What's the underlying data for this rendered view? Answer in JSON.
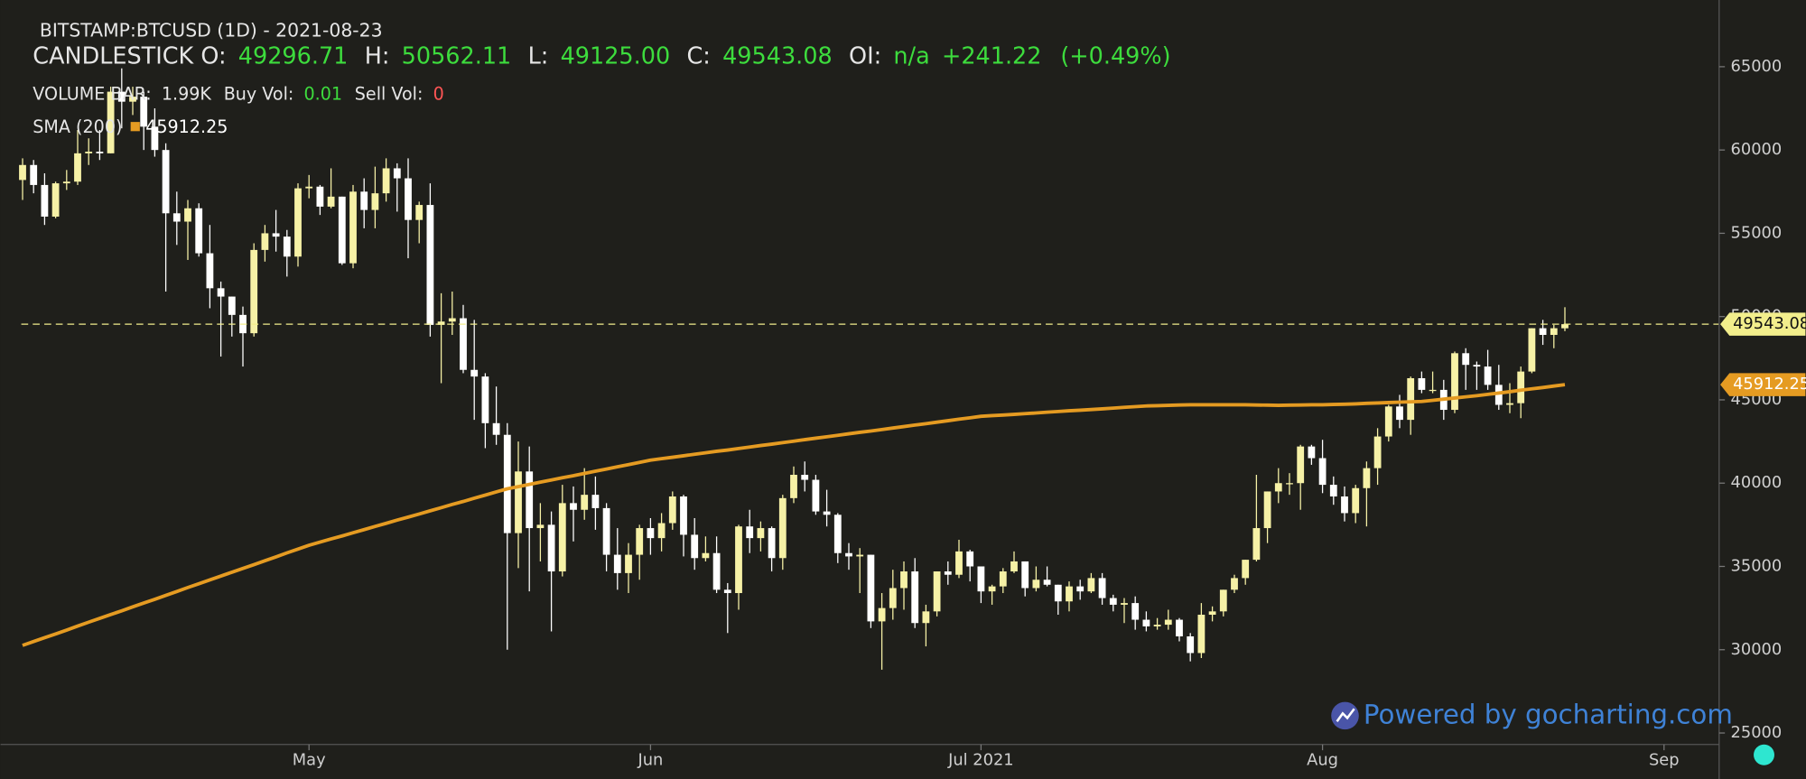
{
  "header": {
    "symbol": "BITSTAMP:BTCUSD (1D) - 2021-08-23",
    "ohlc": [
      {
        "label": "CANDLESTICK O:",
        "value": "49296.71"
      },
      {
        "label": "H:",
        "value": "50562.11"
      },
      {
        "label": "L:",
        "value": "49125.00"
      },
      {
        "label": "C:",
        "value": "49543.08"
      },
      {
        "label": "OI:",
        "value": "n/a"
      }
    ],
    "change": "+241.22",
    "change_pct": "(+0.49%)",
    "volume": {
      "label": "VOLUME BAR:",
      "value": "1.99K",
      "buy_label": "Buy Vol:",
      "buy": "0.01",
      "sell_label": "Sell Vol:",
      "sell": "0"
    }
  },
  "watermark": "Powered by gocharting.com",
  "chart_data": {
    "type": "candlestick",
    "up_color": "#f6f1a6",
    "down_color": "#ffffff",
    "last_line_color": "#f2ee8c",
    "xlim": [
      "2021-04-03",
      "2021-09-06"
    ],
    "xticks": [
      {
        "value": "2021-05-01",
        "label": "May"
      },
      {
        "value": "2021-06-01",
        "label": "Jun"
      },
      {
        "value": "2021-07-01",
        "label": "Jul 2021"
      },
      {
        "value": "2021-08-01",
        "label": "Aug"
      },
      {
        "value": "2021-09-01",
        "label": "Sep"
      }
    ],
    "ylim": [
      24310,
      69005
    ],
    "yticks": [
      25000,
      30000,
      35000,
      40000,
      45000,
      50000,
      55000,
      60000,
      65000
    ],
    "x": [
      "2021-04-05",
      "2021-04-06",
      "2021-04-07",
      "2021-04-08",
      "2021-04-09",
      "2021-04-10",
      "2021-04-11",
      "2021-04-12",
      "2021-04-13",
      "2021-04-14",
      "2021-04-15",
      "2021-04-16",
      "2021-04-17",
      "2021-04-18",
      "2021-04-19",
      "2021-04-20",
      "2021-04-21",
      "2021-04-22",
      "2021-04-23",
      "2021-04-24",
      "2021-04-25",
      "2021-04-26",
      "2021-04-27",
      "2021-04-28",
      "2021-04-29",
      "2021-04-30",
      "2021-05-01",
      "2021-05-02",
      "2021-05-03",
      "2021-05-04",
      "2021-05-05",
      "2021-05-06",
      "2021-05-07",
      "2021-05-08",
      "2021-05-09",
      "2021-05-10",
      "2021-05-11",
      "2021-05-12",
      "2021-05-13",
      "2021-05-14",
      "2021-05-15",
      "2021-05-16",
      "2021-05-17",
      "2021-05-18",
      "2021-05-19",
      "2021-05-20",
      "2021-05-21",
      "2021-05-22",
      "2021-05-23",
      "2021-05-24",
      "2021-05-25",
      "2021-05-26",
      "2021-05-27",
      "2021-05-28",
      "2021-05-29",
      "2021-05-30",
      "2021-05-31",
      "2021-06-01",
      "2021-06-02",
      "2021-06-03",
      "2021-06-04",
      "2021-06-05",
      "2021-06-06",
      "2021-06-07",
      "2021-06-08",
      "2021-06-09",
      "2021-06-10",
      "2021-06-11",
      "2021-06-12",
      "2021-06-13",
      "2021-06-14",
      "2021-06-15",
      "2021-06-16",
      "2021-06-17",
      "2021-06-18",
      "2021-06-19",
      "2021-06-20",
      "2021-06-21",
      "2021-06-22",
      "2021-06-23",
      "2021-06-24",
      "2021-06-25",
      "2021-06-26",
      "2021-06-27",
      "2021-06-28",
      "2021-06-29",
      "2021-06-30",
      "2021-07-01",
      "2021-07-02",
      "2021-07-03",
      "2021-07-04",
      "2021-07-05",
      "2021-07-06",
      "2021-07-07",
      "2021-07-08",
      "2021-07-09",
      "2021-07-10",
      "2021-07-11",
      "2021-07-12",
      "2021-07-13",
      "2021-07-14",
      "2021-07-15",
      "2021-07-16",
      "2021-07-17",
      "2021-07-18",
      "2021-07-19",
      "2021-07-20",
      "2021-07-21",
      "2021-07-22",
      "2021-07-23",
      "2021-07-24",
      "2021-07-25",
      "2021-07-26",
      "2021-07-27",
      "2021-07-28",
      "2021-07-29",
      "2021-07-30",
      "2021-07-31",
      "2021-08-01",
      "2021-08-02",
      "2021-08-03",
      "2021-08-04",
      "2021-08-05",
      "2021-08-06",
      "2021-08-07",
      "2021-08-08",
      "2021-08-09",
      "2021-08-10",
      "2021-08-11",
      "2021-08-12",
      "2021-08-13",
      "2021-08-14",
      "2021-08-15",
      "2021-08-16",
      "2021-08-17",
      "2021-08-18",
      "2021-08-19",
      "2021-08-20",
      "2021-08-21",
      "2021-08-22",
      "2021-08-23"
    ],
    "open": [
      58200,
      59100,
      57900,
      56000,
      58000,
      58100,
      59800,
      59900,
      59800,
      63500,
      62900,
      63200,
      61400,
      60000,
      56200,
      55700,
      56500,
      53800,
      51700,
      51200,
      50100,
      49000,
      54000,
      55000,
      54800,
      53600,
      57700,
      57800,
      56600,
      57200,
      53200,
      57500,
      56400,
      57400,
      58900,
      58300,
      55800,
      56700,
      49500,
      49700,
      49900,
      46800,
      46400,
      43600,
      42900,
      37000,
      40700,
      37300,
      37500,
      34700,
      38800,
      38400,
      39300,
      38500,
      35700,
      34600,
      35700,
      37300,
      36700,
      37600,
      39200,
      36900,
      35500,
      35800,
      33600,
      33400,
      37400,
      36700,
      37300,
      35500,
      39100,
      40500,
      40200,
      38300,
      38100,
      35800,
      35600,
      35700,
      31700,
      32500,
      33700,
      34700,
      31600,
      32300,
      34700,
      34500,
      35900,
      35000,
      33500,
      33800,
      34700,
      35300,
      33700,
      34200,
      33900,
      32900,
      33800,
      33500,
      34300,
      33100,
      32700,
      32800,
      31800,
      31400,
      31500,
      31800,
      30800,
      29800,
      32100,
      32300,
      33600,
      34300,
      35400,
      37300,
      39500,
      40000,
      40000,
      42200,
      41500,
      39900,
      39200,
      38200,
      39700,
      40900,
      42800,
      44600,
      43800,
      46300,
      45600,
      45600,
      44400,
      47800,
      47100,
      47000,
      45900,
      44700,
      44800,
      46700,
      49300,
      48900,
      49296.71
    ],
    "high": [
      59500,
      59400,
      58600,
      58100,
      58800,
      61200,
      60700,
      61200,
      63800,
      64900,
      63800,
      63500,
      62500,
      60400,
      57500,
      57000,
      56800,
      55500,
      52100,
      51200,
      50600,
      54400,
      55500,
      56400,
      55200,
      58000,
      58500,
      57900,
      58900,
      57200,
      57900,
      58300,
      59000,
      59500,
      59200,
      59500,
      56900,
      58000,
      51400,
      51500,
      50700,
      49800,
      46600,
      45800,
      43600,
      42500,
      42200,
      38800,
      38300,
      39900,
      39800,
      40900,
      40400,
      38800,
      37300,
      36400,
      37500,
      37900,
      38200,
      39500,
      39300,
      37900,
      36800,
      36800,
      34000,
      37500,
      38400,
      37700,
      37400,
      39300,
      41000,
      41300,
      40500,
      39600,
      38200,
      36400,
      36100,
      35700,
      33400,
      34800,
      35300,
      35500,
      32700,
      34700,
      35300,
      36600,
      36000,
      35000,
      33900,
      34900,
      35900,
      35300,
      35000,
      35000,
      33900,
      34100,
      34200,
      34600,
      34600,
      33300,
      33100,
      33200,
      32300,
      31900,
      32400,
      31900,
      31000,
      32800,
      32600,
      33600,
      34500,
      35400,
      40500,
      39500,
      40900,
      40600,
      42300,
      42300,
      42600,
      40400,
      39800,
      39900,
      41300,
      43300,
      44700,
      45300,
      46400,
      46700,
      46700,
      46200,
      47900,
      48100,
      47300,
      48000,
      47100,
      46000,
      47000,
      49300,
      49800,
      49500,
      50562.11
    ],
    "low": [
      57000,
      57400,
      55500,
      55900,
      57600,
      57900,
      59100,
      59400,
      59800,
      61300,
      62100,
      60000,
      59600,
      51500,
      54300,
      53400,
      53600,
      50500,
      47600,
      48800,
      47000,
      48800,
      53300,
      53900,
      52400,
      53000,
      57100,
      56100,
      56500,
      53100,
      52900,
      55300,
      55300,
      56900,
      56300,
      53500,
      54400,
      48800,
      46000,
      48900,
      46600,
      43800,
      42100,
      42300,
      30000,
      34900,
      33500,
      35300,
      31100,
      34400,
      36500,
      37800,
      37200,
      34700,
      33600,
      33400,
      34200,
      35700,
      35900,
      37200,
      35600,
      34800,
      35300,
      33400,
      31000,
      32400,
      35800,
      35900,
      34700,
      34800,
      38800,
      39500,
      38100,
      37400,
      35200,
      34800,
      33400,
      31300,
      28800,
      31800,
      32400,
      31300,
      30200,
      32000,
      33900,
      34300,
      34100,
      32800,
      32700,
      33400,
      34600,
      33200,
      33500,
      33800,
      32100,
      32300,
      33000,
      33400,
      32700,
      32300,
      31600,
      31200,
      31100,
      31200,
      31200,
      30500,
      29300,
      29500,
      31700,
      32000,
      33400,
      33900,
      35300,
      36400,
      38800,
      39300,
      38400,
      41100,
      39400,
      38700,
      37700,
      37600,
      37400,
      39900,
      42500,
      43300,
      42900,
      45400,
      45400,
      43800,
      44200,
      45600,
      45600,
      45600,
      44400,
      44200,
      43900,
      46600,
      48300,
      48100,
      49125
    ],
    "close": [
      59100,
      57900,
      56000,
      58000,
      58100,
      59800,
      59900,
      59800,
      63500,
      62900,
      63200,
      61400,
      60000,
      56200,
      55700,
      56500,
      53800,
      51700,
      51200,
      50100,
      49000,
      54000,
      55000,
      54800,
      53600,
      57700,
      57800,
      56600,
      57200,
      53200,
      57500,
      56400,
      57400,
      58900,
      58300,
      55800,
      56700,
      49500,
      49700,
      49900,
      46800,
      46400,
      43600,
      42900,
      37000,
      40700,
      37300,
      37500,
      34700,
      38800,
      38400,
      39300,
      38500,
      35700,
      34600,
      35700,
      37300,
      36700,
      37600,
      39200,
      36900,
      35500,
      35800,
      33600,
      33400,
      37400,
      36700,
      37300,
      35500,
      39100,
      40500,
      40200,
      38300,
      38100,
      35800,
      35600,
      35700,
      31700,
      32500,
      33700,
      34700,
      31600,
      32300,
      34700,
      34500,
      35900,
      35000,
      33500,
      33800,
      34700,
      35300,
      33700,
      34200,
      33900,
      32900,
      33800,
      33500,
      34300,
      33100,
      32700,
      32800,
      31800,
      31400,
      31500,
      31800,
      30800,
      29800,
      32100,
      32300,
      33600,
      34300,
      35400,
      37300,
      39500,
      40000,
      40000,
      42200,
      41500,
      39900,
      39200,
      38200,
      39700,
      40900,
      42800,
      44600,
      43800,
      46300,
      45600,
      45600,
      44400,
      47800,
      47100,
      47000,
      45900,
      44700,
      44800,
      46700,
      49300,
      48900,
      49300,
      49543.08
    ],
    "series": [
      {
        "name": "SMA (200)",
        "color": "#e59b22",
        "values": [
          30260,
          30490,
          30720,
          30950,
          31180,
          31420,
          31650,
          31880,
          32110,
          32340,
          32570,
          32800,
          33030,
          33260,
          33490,
          33730,
          33960,
          34190,
          34420,
          34650,
          34880,
          35110,
          35340,
          35570,
          35810,
          36040,
          36270,
          36460,
          36650,
          36830,
          37020,
          37210,
          37400,
          37590,
          37780,
          37960,
          38150,
          38340,
          38530,
          38720,
          38900,
          39090,
          39280,
          39470,
          39660,
          39790,
          39920,
          40060,
          40190,
          40320,
          40450,
          40580,
          40720,
          40850,
          40980,
          41110,
          41250,
          41380,
          41470,
          41550,
          41640,
          41730,
          41820,
          41910,
          41990,
          42080,
          42170,
          42260,
          42340,
          42430,
          42520,
          42610,
          42700,
          42780,
          42870,
          42960,
          43050,
          43130,
          43220,
          43310,
          43400,
          43490,
          43570,
          43660,
          43750,
          43840,
          43920,
          44010,
          44050,
          44090,
          44130,
          44170,
          44210,
          44260,
          44300,
          44340,
          44380,
          44420,
          44460,
          44500,
          44550,
          44590,
          44630,
          44650,
          44670,
          44690,
          44700,
          44700,
          44700,
          44700,
          44700,
          44700,
          44690,
          44680,
          44670,
          44680,
          44690,
          44700,
          44700,
          44720,
          44740,
          44760,
          44790,
          44810,
          44840,
          44860,
          44880,
          44900,
          44970,
          45040,
          45110,
          45180,
          45250,
          45330,
          45410,
          45490,
          45580,
          45660,
          45740,
          45830,
          45912.25
        ]
      }
    ]
  }
}
